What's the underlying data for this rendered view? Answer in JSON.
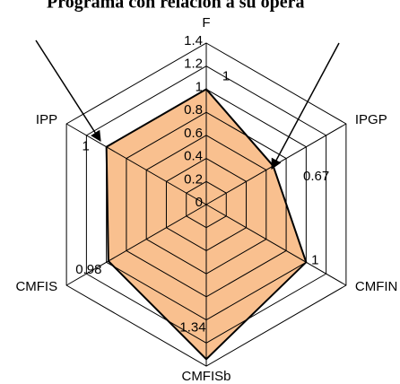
{
  "chart_data": {
    "type": "radar",
    "title": "Programa con relación a su opera",
    "categories": [
      "F",
      "IPGP",
      "CMFIN",
      "CMFISb",
      "CMFIS",
      "IPP"
    ],
    "values": [
      1,
      0.67,
      1,
      1.34,
      0.98,
      1
    ],
    "color": "#f9c08f",
    "ylim": [
      0,
      1.4
    ],
    "yticks": [
      0,
      0.2,
      0.4,
      0.6,
      0.8,
      1,
      1.2,
      1.4
    ],
    "grid": true
  }
}
